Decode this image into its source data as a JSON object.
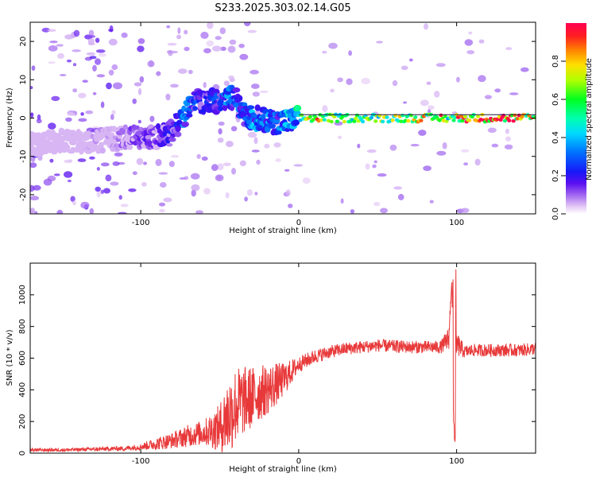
{
  "page_title": "S233.2025.303.02.14.G05",
  "colors": {
    "snr_line": "#e8393a",
    "axes": "#000000",
    "background": "#ffffff",
    "colormap": [
      "#ecd9f7",
      "#c9a8f0",
      "#8a44ee",
      "#3600f0",
      "#0033ff",
      "#00bfff",
      "#00ffd0",
      "#00ff40",
      "#c8ff00",
      "#ffd000",
      "#ff6000",
      "#ff0030"
    ]
  },
  "chart_data": [
    {
      "type": "heatmap",
      "title": "S233.2025.303.02.14.G05",
      "xlabel": "Height of straight line (km)",
      "ylabel": "Frequency (Hz)",
      "xlim": [
        -170,
        150
      ],
      "ylim": [
        -25,
        25
      ],
      "xticks": [
        -100,
        0,
        100
      ],
      "yticks": [
        -20,
        -10,
        0,
        10,
        20
      ],
      "colorbar": {
        "label": "Normalized spectral amplitude",
        "range": [
          0,
          1
        ],
        "ticks": [
          "0.0",
          "0.2",
          "0.4",
          "0.6",
          "0.8"
        ]
      },
      "ridge": {
        "x": [
          -170,
          -150,
          -130,
          -110,
          -100,
          -90,
          -80,
          -75,
          -70,
          -65,
          -60,
          -55,
          -50,
          -45,
          -40,
          -35,
          -30,
          -25,
          -20,
          -15,
          -10,
          0,
          10,
          20,
          40,
          60,
          80,
          90,
          95,
          100,
          120,
          140,
          150
        ],
        "freq": [
          -7,
          -6,
          -6,
          -5,
          -5,
          -5,
          -3,
          -1,
          2,
          5,
          4,
          5,
          4,
          6,
          5,
          1,
          0,
          0,
          -1,
          -1,
          -1,
          0,
          0,
          0,
          0,
          0,
          0,
          0,
          0,
          0,
          0,
          0,
          0
        ],
        "amplitude": [
          0.05,
          0.1,
          0.15,
          0.2,
          0.25,
          0.25,
          0.3,
          0.4,
          0.45,
          0.35,
          0.3,
          0.35,
          0.35,
          0.45,
          0.4,
          0.4,
          0.45,
          0.5,
          0.45,
          0.4,
          0.45,
          0.6,
          0.85,
          0.7,
          0.65,
          0.7,
          0.8,
          0.85,
          0.6,
          0.9,
          0.95,
          0.9,
          0.85
        ]
      }
    },
    {
      "type": "line",
      "title": "",
      "xlabel": "Height of straight line (km)",
      "ylabel": "SNR (10 * v/v)",
      "xlim": [
        -170,
        150
      ],
      "ylim": [
        0,
        1200
      ],
      "xticks": [
        -100,
        0,
        100
      ],
      "yticks": [
        0,
        200,
        400,
        600,
        800,
        1000
      ],
      "series": [
        {
          "name": "SNR",
          "x": [
            -170,
            -150,
            -130,
            -110,
            -100,
            -90,
            -80,
            -70,
            -60,
            -50,
            -45,
            -40,
            -35,
            -30,
            -25,
            -20,
            -15,
            -10,
            -5,
            0,
            10,
            20,
            30,
            40,
            50,
            60,
            70,
            80,
            90,
            95,
            97,
            98,
            99,
            100,
            105,
            110,
            120,
            130,
            140,
            150
          ],
          "y": [
            20,
            20,
            25,
            30,
            40,
            60,
            80,
            110,
            130,
            160,
            230,
            300,
            330,
            350,
            380,
            400,
            430,
            460,
            510,
            560,
            610,
            640,
            660,
            670,
            680,
            675,
            670,
            670,
            670,
            720,
            1100,
            200,
            150,
            690,
            640,
            650,
            650,
            650,
            650,
            660
          ],
          "spread": [
            10,
            10,
            12,
            15,
            20,
            40,
            50,
            70,
            80,
            150,
            250,
            250,
            220,
            200,
            180,
            160,
            140,
            110,
            80,
            50,
            45,
            40,
            40,
            40,
            40,
            40,
            40,
            40,
            40,
            80,
            0,
            0,
            0,
            80,
            40,
            40,
            40,
            40,
            40,
            40
          ],
          "noise": [
            10,
            10,
            12,
            15,
            20,
            40,
            50,
            70,
            80,
            150,
            250,
            250,
            220,
            200,
            180,
            160,
            140,
            110,
            80,
            50,
            45,
            40,
            40,
            40,
            40,
            40,
            40,
            40,
            40,
            80,
            0,
            0,
            0,
            80,
            40,
            40,
            40,
            40,
            40,
            40
          ],
          "samples": 1800
        }
      ]
    }
  ]
}
